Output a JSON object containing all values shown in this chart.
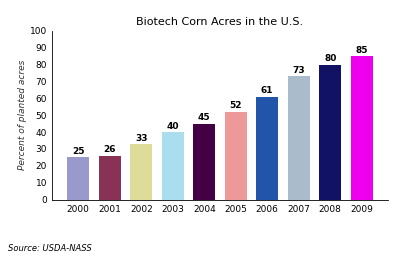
{
  "title": "Biotech Corn Acres in the U.S.",
  "ylabel": "Percent of planted acres",
  "years": [
    "2000",
    "2001",
    "2002",
    "2003",
    "2004",
    "2005",
    "2006",
    "2007",
    "2008",
    "2009"
  ],
  "values": [
    25,
    26,
    33,
    40,
    45,
    52,
    61,
    73,
    80,
    85
  ],
  "bar_colors": [
    "#9999cc",
    "#883355",
    "#dddd99",
    "#aaddee",
    "#440044",
    "#ee9999",
    "#2255aa",
    "#aabbcc",
    "#111166",
    "#ee00ee"
  ],
  "ylim": [
    0,
    100
  ],
  "yticks": [
    0,
    10,
    20,
    30,
    40,
    50,
    60,
    70,
    80,
    90,
    100
  ],
  "source_text": "Source: USDA-NASS",
  "background_color": "#ffffff",
  "label_fontsize": 6.5,
  "title_fontsize": 8,
  "axis_label_fontsize": 6.5,
  "tick_fontsize": 6.5,
  "source_fontsize": 6
}
